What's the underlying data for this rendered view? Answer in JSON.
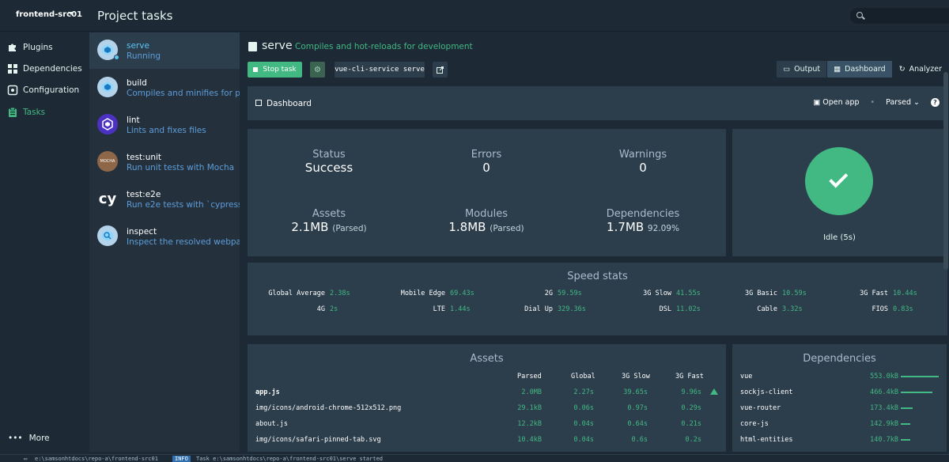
{
  "topbar": {
    "project": "frontend-src01",
    "page_title": "Project tasks",
    "search_placeholder": ""
  },
  "nav": {
    "items": [
      {
        "label": "Plugins",
        "icon": "puzzle-icon"
      },
      {
        "label": "Dependencies",
        "icon": "package-icon"
      },
      {
        "label": "Configuration",
        "icon": "settings-icon"
      },
      {
        "label": "Tasks",
        "icon": "clipboard-icon"
      }
    ],
    "more": "More"
  },
  "tasks": [
    {
      "name": "serve",
      "desc": "Running",
      "selected": true
    },
    {
      "name": "build",
      "desc": "Compiles and minifies for p..."
    },
    {
      "name": "lint",
      "desc": "Lints and fixes files"
    },
    {
      "name": "test:unit",
      "desc": "Run unit tests with Mocha",
      "icon_text": "MOCHA"
    },
    {
      "name": "test:e2e",
      "desc": "Run e2e tests with `cypress ...",
      "icon_text": "cy"
    },
    {
      "name": "inspect",
      "desc": "Inspect the resolved webpa..."
    }
  ],
  "task_header": {
    "name": "serve",
    "desc": "Compiles and hot-reloads for development",
    "stop_label": "Stop task",
    "command": "vue-cli-service serve"
  },
  "view_tabs": {
    "output": "Output",
    "dashboard": "Dashboard",
    "analyzer": "Analyzer"
  },
  "dashboard": {
    "title": "Dashboard",
    "open_app": "Open app",
    "mode": "Parsed",
    "help": "?"
  },
  "stats": {
    "status_label": "Status",
    "status_value": "Success",
    "errors_label": "Errors",
    "errors_value": "0",
    "warnings_label": "Warnings",
    "warnings_value": "0",
    "assets_label": "Assets",
    "assets_value": "2.1MB",
    "assets_note": "(Parsed)",
    "modules_label": "Modules",
    "modules_value": "1.8MB",
    "modules_note": "(Parsed)",
    "deps_label": "Dependencies",
    "deps_value": "1.7MB",
    "deps_note": "92.09%"
  },
  "idle": {
    "label": "Idle (5s)"
  },
  "speed": {
    "title": "Speed stats",
    "row1": [
      {
        "k": "Global Average",
        "v": "2.38s"
      },
      {
        "k": "Mobile Edge",
        "v": "69.43s"
      },
      {
        "k": "2G",
        "v": "59.59s"
      },
      {
        "k": "3G Slow",
        "v": "41.55s"
      },
      {
        "k": "3G Basic",
        "v": "10.59s"
      },
      {
        "k": "3G Fast",
        "v": "10.44s"
      }
    ],
    "row2": [
      {
        "k": "4G",
        "v": "2s"
      },
      {
        "k": "LTE",
        "v": "1.44s"
      },
      {
        "k": "Dial Up",
        "v": "329.36s"
      },
      {
        "k": "DSL",
        "v": "11.02s"
      },
      {
        "k": "Cable",
        "v": "3.32s"
      },
      {
        "k": "FIOS",
        "v": "0.83s"
      }
    ]
  },
  "assets": {
    "title": "Assets",
    "headers": [
      "Parsed",
      "Global",
      "3G Slow",
      "3G Fast"
    ],
    "rows": [
      {
        "name": "app.js",
        "parsed": "2.0MB",
        "global": "2.27s",
        "slow": "39.65s",
        "fast": "9.96s",
        "bold": true
      },
      {
        "name": "img/icons/android-chrome-512x512.png",
        "parsed": "29.1kB",
        "global": "0.06s",
        "slow": "0.97s",
        "fast": "0.29s"
      },
      {
        "name": "about.js",
        "parsed": "12.2kB",
        "global": "0.04s",
        "slow": "0.64s",
        "fast": "0.21s"
      },
      {
        "name": "img/icons/safari-pinned-tab.svg",
        "parsed": "10.4kB",
        "global": "0.04s",
        "slow": "0.6s",
        "fast": "0.2s"
      }
    ]
  },
  "deps": {
    "title": "Dependencies",
    "rows": [
      {
        "name": "vue",
        "size": "553.0kB",
        "share": 1.0
      },
      {
        "name": "sockjs-client",
        "size": "466.4kB",
        "share": 0.84
      },
      {
        "name": "vue-router",
        "size": "173.4kB",
        "share": 0.31
      },
      {
        "name": "core-js",
        "size": "142.9kB",
        "share": 0.26
      },
      {
        "name": "html-entities",
        "size": "140.7kB",
        "share": 0.25
      }
    ]
  },
  "statusbar": {
    "path": "e:\\samsonhtdocs\\repo-a\\frontend-src01",
    "badge": "INFO",
    "message": "Task e:\\samsonhtdocs\\repo-a\\frontend-src01\\serve started"
  },
  "colors": {
    "accent": "#42b983",
    "bg": "#1d2935",
    "panel": "#2c3e4c",
    "link": "#5d9dd9"
  }
}
